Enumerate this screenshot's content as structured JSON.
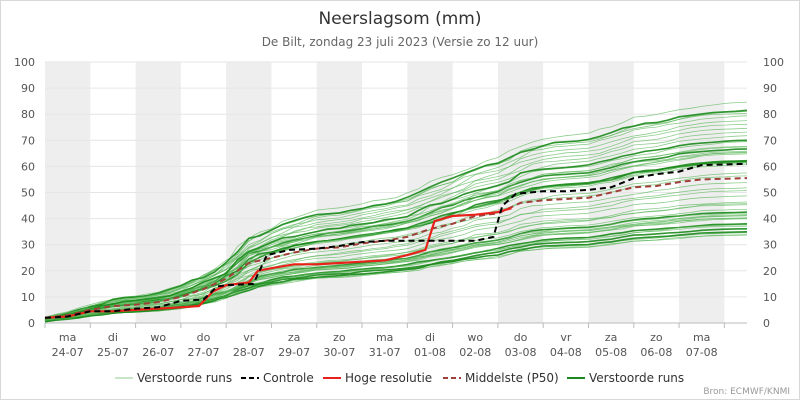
{
  "chart_data": {
    "type": "line",
    "title": "Neerslagsom (mm)",
    "subtitle": "De Bilt, zondag 23 juli 2023 (Versie zo 12 uur)",
    "credit": "Bron: ECMWF/KNMI",
    "ylim": [
      0,
      100
    ],
    "yticks": [
      0,
      10,
      20,
      30,
      40,
      50,
      60,
      70,
      80,
      90,
      100
    ],
    "xlim": [
      0,
      15.5
    ],
    "day_labels": [
      {
        "day": "ma",
        "date": "24-07"
      },
      {
        "day": "di",
        "date": "25-07"
      },
      {
        "day": "wo",
        "date": "26-07"
      },
      {
        "day": "do",
        "date": "27-07"
      },
      {
        "day": "vr",
        "date": "28-07"
      },
      {
        "day": "za",
        "date": "29-07"
      },
      {
        "day": "zo",
        "date": "30-07"
      },
      {
        "day": "ma",
        "date": "31-07"
      },
      {
        "day": "di",
        "date": "01-08"
      },
      {
        "day": "wo",
        "date": "02-08"
      },
      {
        "day": "do",
        "date": "03-08"
      },
      {
        "day": "vr",
        "date": "04-08"
      },
      {
        "day": "za",
        "date": "05-08"
      },
      {
        "day": "zo",
        "date": "06-08"
      },
      {
        "day": "ma",
        "date": "07-08"
      }
    ],
    "colors": {
      "ensemble": "#5cb85c",
      "control": "#000000",
      "high_res": "#e8221b",
      "median": "#a0403a",
      "ensemble_mean": "#1a8a1a",
      "band": "#eeeeee",
      "grid": "#e6e6e6"
    },
    "series": [
      {
        "name": "Controle",
        "style": "dashed",
        "points": [
          [
            0,
            2
          ],
          [
            0.5,
            2.5
          ],
          [
            1,
            4.5
          ],
          [
            1.5,
            4.5
          ],
          [
            2,
            5.5
          ],
          [
            2.5,
            6
          ],
          [
            3,
            8.5
          ],
          [
            3.5,
            9
          ],
          [
            3.8,
            14
          ],
          [
            4,
            14.5
          ],
          [
            4.6,
            15
          ],
          [
            4.9,
            26
          ],
          [
            5.4,
            28
          ],
          [
            6,
            28.5
          ],
          [
            6.5,
            29.5
          ],
          [
            7,
            31
          ],
          [
            7.5,
            31.5
          ],
          [
            8,
            31.5
          ],
          [
            8.5,
            31.5
          ],
          [
            9,
            31.5
          ],
          [
            9.5,
            31.5
          ],
          [
            9.9,
            33
          ],
          [
            10.1,
            45
          ],
          [
            10.4,
            49.5
          ],
          [
            11,
            50.5
          ],
          [
            11.5,
            50.5
          ],
          [
            12,
            51
          ],
          [
            12.5,
            52
          ],
          [
            13,
            55.5
          ],
          [
            13.5,
            57
          ],
          [
            14,
            58
          ],
          [
            14.5,
            60.5
          ],
          [
            15.5,
            61
          ]
        ]
      },
      {
        "name": "Hoge resolutie",
        "style": "solid",
        "points": [
          [
            0,
            2
          ],
          [
            0.5,
            2.5
          ],
          [
            1,
            4.5
          ],
          [
            1.5,
            4.5
          ],
          [
            2,
            5
          ],
          [
            2.5,
            5.5
          ],
          [
            3,
            6
          ],
          [
            3.4,
            6.5
          ],
          [
            3.7,
            12
          ],
          [
            4,
            14.5
          ],
          [
            4.5,
            15.5
          ],
          [
            4.7,
            20
          ],
          [
            5,
            21
          ],
          [
            5.5,
            22.5
          ],
          [
            6,
            22.5
          ],
          [
            6.5,
            23
          ],
          [
            7,
            23.5
          ],
          [
            7.5,
            24
          ],
          [
            8,
            26
          ],
          [
            8.4,
            28
          ],
          [
            8.6,
            39
          ],
          [
            9,
            41
          ],
          [
            9.5,
            41.5
          ],
          [
            10,
            42.5
          ],
          [
            10.3,
            44
          ]
        ]
      },
      {
        "name": "Middelste (P50)",
        "style": "dashed",
        "points": [
          [
            0,
            2
          ],
          [
            0.5,
            3
          ],
          [
            1,
            5
          ],
          [
            1.5,
            6.5
          ],
          [
            2,
            7
          ],
          [
            2.5,
            8
          ],
          [
            3,
            10
          ],
          [
            3.5,
            13
          ],
          [
            4,
            17
          ],
          [
            4.5,
            23
          ],
          [
            5,
            25
          ],
          [
            5.5,
            27
          ],
          [
            6,
            28.5
          ],
          [
            6.5,
            29
          ],
          [
            7,
            30.5
          ],
          [
            7.5,
            31.5
          ],
          [
            8,
            33
          ],
          [
            8.5,
            36
          ],
          [
            9,
            38
          ],
          [
            9.5,
            41
          ],
          [
            10,
            42
          ],
          [
            10.5,
            46
          ],
          [
            11,
            47
          ],
          [
            11.5,
            47.5
          ],
          [
            12,
            48
          ],
          [
            12.5,
            50
          ],
          [
            13,
            52
          ],
          [
            13.5,
            52.5
          ],
          [
            14,
            54
          ],
          [
            14.5,
            55
          ],
          [
            15.5,
            55.5
          ]
        ]
      }
    ],
    "legend": [
      {
        "label": "Verstoorde runs",
        "kind": "thin-line"
      },
      {
        "label": "Controle",
        "kind": "dashed-black"
      },
      {
        "label": "Hoge resolutie",
        "kind": "solid-red"
      },
      {
        "label": "Middelste (P50)",
        "kind": "dashed-brown"
      },
      {
        "label": "Verstoorde runs",
        "kind": "thick-line"
      }
    ]
  }
}
